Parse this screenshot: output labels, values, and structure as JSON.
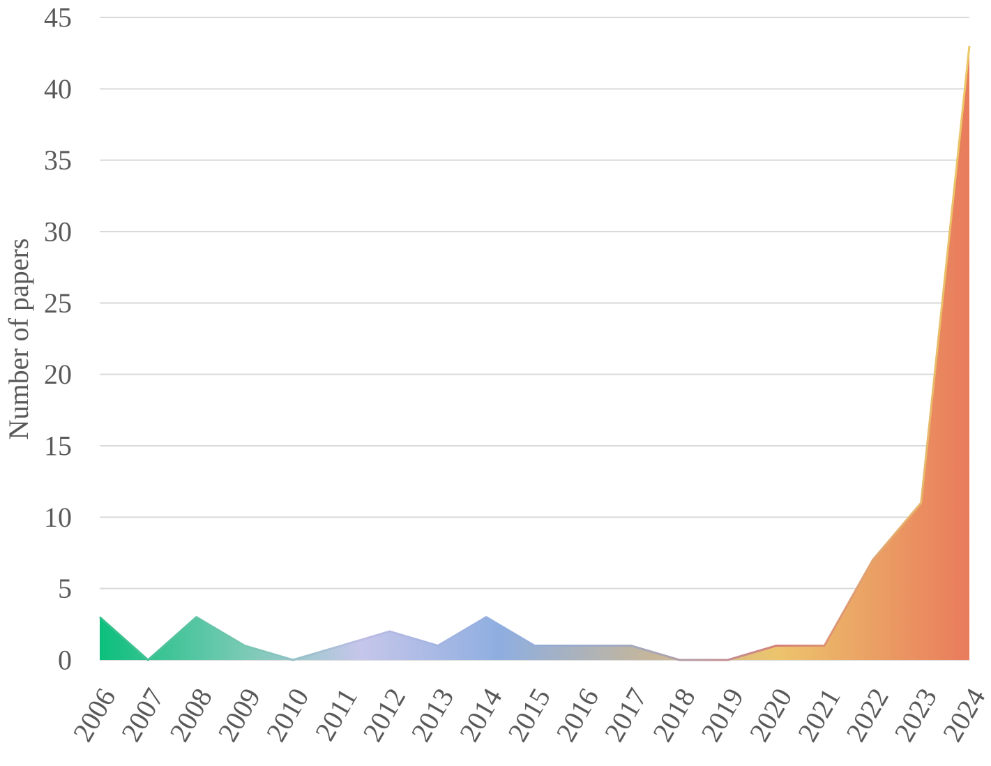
{
  "chart_data": {
    "type": "area",
    "title": "",
    "xlabel": "",
    "ylabel": "Number of papers",
    "x": [
      "2006",
      "2007",
      "2008",
      "2009",
      "2010",
      "2011",
      "2012",
      "2013",
      "2014",
      "2015",
      "2016",
      "2017",
      "2018",
      "2019",
      "2020",
      "2021",
      "2022",
      "2023",
      "2024"
    ],
    "values": [
      3,
      0,
      3,
      1,
      0,
      1,
      2,
      1,
      3,
      1,
      1,
      1,
      0,
      0,
      1,
      1,
      7,
      11,
      43
    ],
    "ylim": [
      0,
      45
    ],
    "yticks": [
      "0",
      "5",
      "10",
      "15",
      "20",
      "25",
      "30",
      "35",
      "40",
      "45"
    ],
    "grid": true,
    "legend": "none",
    "gradient_colors": [
      "#0cbf7c",
      "#7ccab6",
      "#c6c6ea",
      "#8eaee0",
      "#c4b69c",
      "#ecc46c",
      "#e97b5c"
    ]
  }
}
